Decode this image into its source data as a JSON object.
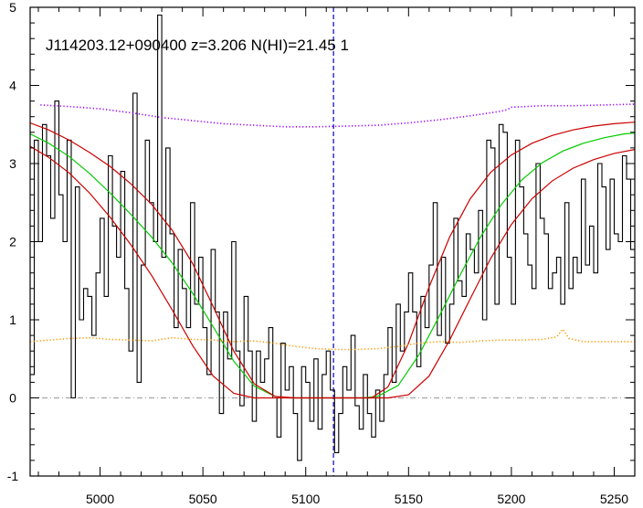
{
  "chart_data": {
    "type": "line",
    "title": "J114203.12+090400 z=3.206 N(HI)=21.45 1",
    "xlabel": "",
    "ylabel": "",
    "xlim": [
      4966,
      5260
    ],
    "ylim": [
      -1.0,
      5.0
    ],
    "x_ticks": [
      5000,
      5050,
      5100,
      5150,
      5200,
      5250
    ],
    "x_tick_labels": [
      "5000",
      "5050",
      "5100",
      "5150",
      "5200",
      "5250"
    ],
    "y_ticks": [
      -1,
      0,
      1,
      2,
      3,
      4,
      5
    ],
    "y_tick_labels": [
      "-1",
      "0",
      "1",
      "2",
      "3",
      "4",
      "5"
    ],
    "grid": false,
    "legend": "none",
    "center_marker": {
      "x": 5113.5,
      "style": "dashed",
      "color": "#0000cc"
    },
    "zero_level": {
      "y": 0.0,
      "style": "dash-dot",
      "color": "#999999"
    },
    "series": [
      {
        "style": "histogram",
        "color": "#000000",
        "x": [
          4967,
          4969,
          4971,
          4973,
          4975,
          4977,
          4979,
          4981,
          4983,
          4985,
          4987,
          4989,
          4991,
          4993,
          4995,
          4997,
          4999,
          5001,
          5003,
          5005,
          5007,
          5009,
          5011,
          5013,
          5015,
          5017,
          5019,
          5021,
          5023,
          5025,
          5027,
          5029,
          5031,
          5033,
          5035,
          5037,
          5039,
          5041,
          5043,
          5045,
          5047,
          5049,
          5051,
          5053,
          5055,
          5057,
          5059,
          5061,
          5063,
          5065,
          5067,
          5069,
          5071,
          5073,
          5075,
          5077,
          5079,
          5081,
          5083,
          5085,
          5087,
          5089,
          5091,
          5093,
          5095,
          5097,
          5099,
          5101,
          5103,
          5105,
          5107,
          5109,
          5111,
          5113,
          5115,
          5117,
          5119,
          5121,
          5123,
          5125,
          5127,
          5129,
          5131,
          5133,
          5135,
          5137,
          5139,
          5141,
          5143,
          5145,
          5147,
          5149,
          5151,
          5153,
          5155,
          5157,
          5159,
          5161,
          5163,
          5165,
          5167,
          5169,
          5171,
          5173,
          5175,
          5177,
          5179,
          5181,
          5183,
          5185,
          5187,
          5189,
          5191,
          5193,
          5195,
          5197,
          5199,
          5201,
          5203,
          5205,
          5207,
          5209,
          5211,
          5213,
          5215,
          5217,
          5219,
          5221,
          5223,
          5225,
          5227,
          5229,
          5231,
          5233,
          5235,
          5237,
          5239,
          5241,
          5243,
          5245,
          5247,
          5249,
          5251,
          5253,
          5255,
          5257,
          5259
        ],
        "y": [
          0.3,
          3.3,
          2.0,
          3.5,
          3.1,
          2.3,
          3.8,
          2.6,
          2.0,
          3.3,
          0.0,
          2.7,
          1.0,
          1.4,
          1.3,
          0.8,
          1.6,
          2.3,
          1.3,
          3.1,
          2.2,
          1.8,
          2.9,
          1.4,
          0.6,
          3.9,
          0.2,
          1.7,
          3.3,
          2.5,
          2.0,
          4.9,
          1.8,
          3.2,
          2.1,
          0.9,
          1.9,
          1.4,
          0.9,
          2.5,
          1.2,
          1.8,
          0.9,
          0.3,
          1.9,
          1.1,
          -0.2,
          1.1,
          0.5,
          2.0,
          0.6,
          -0.1,
          1.3,
          0.6,
          -0.3,
          0.6,
          0.2,
          0.5,
          0.9,
          0.0,
          -0.5,
          0.7,
          0.1,
          0.4,
          -0.2,
          -0.8,
          0.4,
          0.2,
          -0.3,
          0.5,
          -0.4,
          0.3,
          0.6,
          0.1,
          -0.7,
          -0.2,
          0.4,
          0.1,
          0.8,
          -0.1,
          -0.4,
          0.3,
          -0.2,
          -0.5,
          0.1,
          -0.3,
          0.3,
          0.9,
          0.2,
          1.2,
          0.6,
          1.1,
          1.6,
          1.1,
          0.4,
          1.3,
          0.9,
          1.7,
          2.5,
          0.8,
          1.8,
          0.7,
          1.2,
          2.3,
          1.5,
          1.3,
          2.1,
          1.9,
          1.6,
          2.4,
          1.0,
          3.3,
          3.2,
          1.2,
          3.5,
          3.4,
          1.8,
          1.2,
          3.3,
          2.7,
          2.1,
          1.7,
          1.4,
          3.0,
          2.3,
          2.1,
          1.4,
          1.6,
          1.8,
          1.2,
          2.5,
          1.4,
          1.8,
          1.6,
          2.8,
          1.7,
          2.2,
          1.6,
          3.0,
          2.7,
          1.9,
          2.8,
          2.1,
          2.0,
          3.1,
          2.8,
          1.9
        ]
      },
      {
        "style": "solid",
        "color": "#00cc00",
        "x": [
          4966,
          4975,
          4985,
          4995,
          5005,
          5015,
          5025,
          5035,
          5045,
          5055,
          5065,
          5075,
          5085,
          5092,
          5100,
          5110,
          5120,
          5128,
          5135,
          5145,
          5155,
          5165,
          5175,
          5185,
          5195,
          5205,
          5215,
          5225,
          5235,
          5245,
          5255,
          5260
        ],
        "y": [
          3.38,
          3.26,
          3.09,
          2.87,
          2.62,
          2.35,
          2.06,
          1.73,
          1.34,
          0.91,
          0.47,
          0.15,
          0.02,
          0.0,
          0.0,
          0.0,
          0.0,
          0.0,
          0.02,
          0.16,
          0.55,
          1.05,
          1.57,
          2.06,
          2.47,
          2.79,
          3.01,
          3.16,
          3.26,
          3.33,
          3.38,
          3.39
        ]
      },
      {
        "style": "solid",
        "color": "#cc0000",
        "x": [
          4966,
          4975,
          4985,
          4995,
          5005,
          5015,
          5025,
          5035,
          5045,
          5055,
          5065,
          5075,
          5085,
          5095,
          5105,
          5115,
          5125,
          5132,
          5140,
          5150,
          5160,
          5170,
          5180,
          5190,
          5200,
          5210,
          5220,
          5230,
          5240,
          5250,
          5260
        ],
        "y": [
          3.52,
          3.43,
          3.3,
          3.14,
          2.96,
          2.74,
          2.48,
          2.15,
          1.72,
          1.17,
          0.6,
          0.18,
          0.02,
          0.0,
          0.0,
          0.0,
          0.0,
          0.0,
          0.14,
          0.7,
          1.42,
          2.06,
          2.55,
          2.89,
          3.11,
          3.26,
          3.36,
          3.43,
          3.48,
          3.51,
          3.53
        ]
      },
      {
        "style": "solid",
        "color": "#cc0000",
        "x": [
          4966,
          4975,
          4985,
          4995,
          5005,
          5015,
          5025,
          5035,
          5045,
          5055,
          5065,
          5075,
          5082,
          5090,
          5100,
          5110,
          5120,
          5130,
          5140,
          5150,
          5160,
          5170,
          5180,
          5190,
          5200,
          5210,
          5220,
          5230,
          5240,
          5250,
          5260
        ],
        "y": [
          3.22,
          3.08,
          2.88,
          2.62,
          2.31,
          1.96,
          1.57,
          1.13,
          0.67,
          0.28,
          0.06,
          0.0,
          0.0,
          0.0,
          0.0,
          0.0,
          0.0,
          0.0,
          0.0,
          0.04,
          0.28,
          0.74,
          1.27,
          1.79,
          2.22,
          2.55,
          2.78,
          2.94,
          3.05,
          3.13,
          3.18
        ]
      },
      {
        "style": "dotted",
        "color": "#9900ff",
        "x": [
          4971,
          4985,
          5000,
          5015,
          5030,
          5045,
          5060,
          5075,
          5090,
          5105,
          5120,
          5135,
          5150,
          5165,
          5180,
          5195,
          5198,
          5200,
          5215,
          5230,
          5245,
          5260
        ],
        "y": [
          3.75,
          3.73,
          3.7,
          3.65,
          3.59,
          3.55,
          3.51,
          3.49,
          3.47,
          3.47,
          3.48,
          3.49,
          3.52,
          3.56,
          3.61,
          3.67,
          3.69,
          3.72,
          3.74,
          3.74,
          3.75,
          3.76
        ]
      },
      {
        "style": "dotted",
        "color": "#ff9900",
        "x": [
          4966,
          4975,
          4985,
          4995,
          5005,
          5015,
          5025,
          5035,
          5045,
          5055,
          5065,
          5075,
          5085,
          5095,
          5105,
          5115,
          5125,
          5135,
          5145,
          5155,
          5165,
          5175,
          5185,
          5195,
          5205,
          5215,
          5222,
          5225,
          5228,
          5235,
          5245,
          5255,
          5260
        ],
        "y": [
          0.72,
          0.74,
          0.76,
          0.77,
          0.75,
          0.74,
          0.73,
          0.77,
          0.75,
          0.74,
          0.72,
          0.73,
          0.7,
          0.66,
          0.63,
          0.62,
          0.62,
          0.63,
          0.66,
          0.7,
          0.72,
          0.71,
          0.73,
          0.74,
          0.74,
          0.75,
          0.78,
          0.88,
          0.76,
          0.72,
          0.72,
          0.72,
          0.72
        ]
      }
    ]
  }
}
